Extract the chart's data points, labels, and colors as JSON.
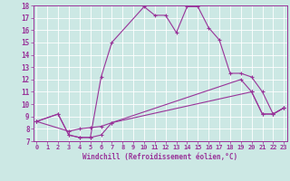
{
  "xlabel": "Windchill (Refroidissement éolien,°C)",
  "bg_color": "#cce8e4",
  "grid_color": "#ffffff",
  "line_color": "#993399",
  "line1_x": [
    0,
    2,
    3,
    4,
    5,
    6,
    7,
    19,
    20,
    21,
    22,
    23
  ],
  "line1_y": [
    8.6,
    9.2,
    7.5,
    7.3,
    7.3,
    7.5,
    8.5,
    12.0,
    11.0,
    9.2,
    9.2,
    9.7
  ],
  "line2_x": [
    0,
    3,
    4,
    5,
    6,
    7,
    20,
    21,
    22,
    23
  ],
  "line2_y": [
    8.6,
    7.8,
    8.0,
    8.1,
    8.2,
    8.5,
    11.0,
    9.2,
    9.2,
    9.7
  ],
  "line3_x": [
    0,
    2,
    3,
    4,
    5,
    6,
    7,
    10,
    11,
    12,
    13,
    14,
    15,
    16,
    17,
    18,
    19,
    20,
    21,
    22,
    23
  ],
  "line3_y": [
    8.6,
    9.2,
    7.5,
    7.3,
    7.3,
    12.2,
    15.0,
    17.9,
    17.2,
    17.2,
    15.8,
    17.9,
    17.9,
    16.2,
    15.2,
    12.5,
    12.5,
    12.2,
    11.0,
    9.2,
    9.7
  ],
  "xlim": [
    -0.3,
    23.3
  ],
  "ylim": [
    7.0,
    18.0
  ],
  "yticks": [
    7,
    8,
    9,
    10,
    11,
    12,
    13,
    14,
    15,
    16,
    17,
    18
  ],
  "xticks": [
    0,
    1,
    2,
    3,
    4,
    5,
    6,
    7,
    8,
    9,
    10,
    11,
    12,
    13,
    14,
    15,
    16,
    17,
    18,
    19,
    20,
    21,
    22,
    23
  ]
}
